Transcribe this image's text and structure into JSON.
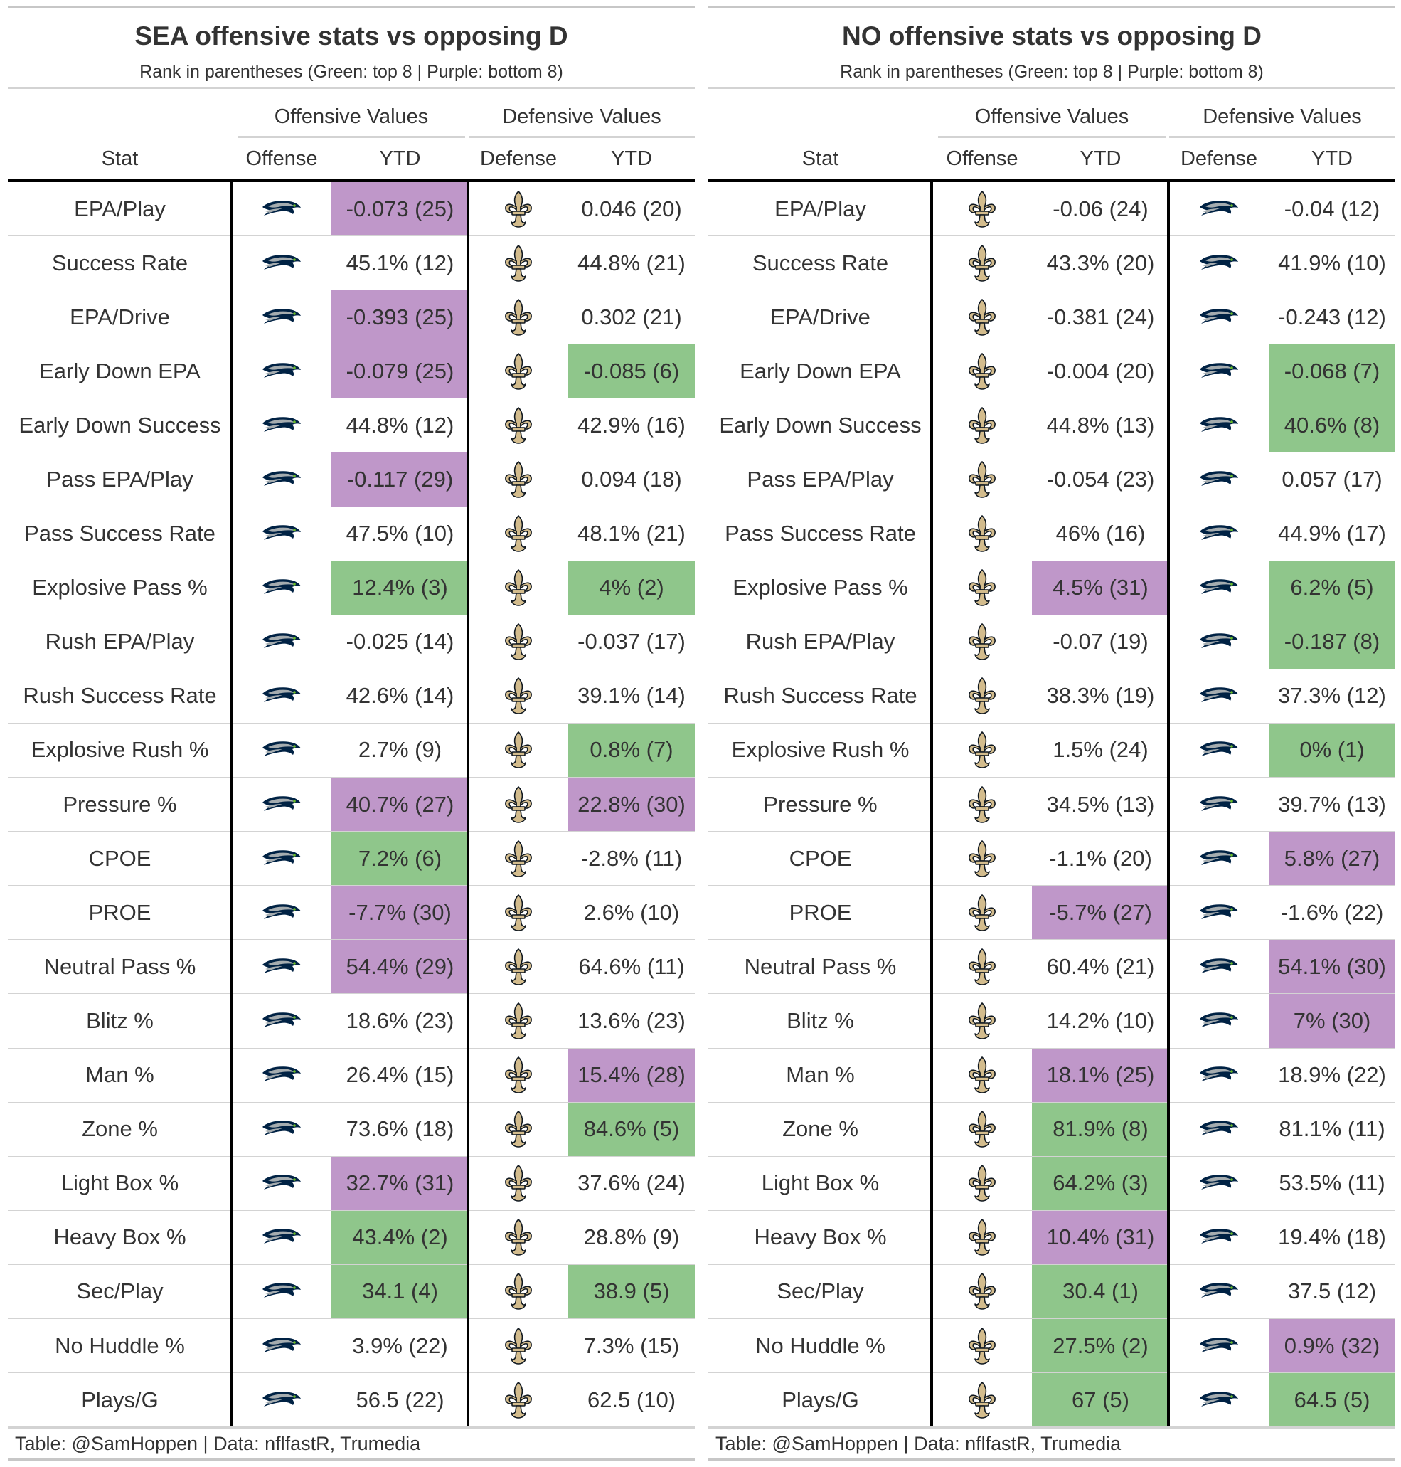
{
  "colors": {
    "top8": "#8fc68b",
    "bottom8": "#bf97c9",
    "seahawks_navy": "#002244",
    "seahawks_gray": "#a5acaf",
    "seahawks_green": "#69be28",
    "saints_gold": "#d3bc8d",
    "saints_black": "#101820"
  },
  "icons": {
    "SEA": "seahawks-logo-icon",
    "NO": "saints-fleur-de-lis-icon"
  },
  "tables": [
    {
      "title": "SEA offensive stats vs opposing D",
      "subtitle": "Rank in parentheses (Green: top 8 | Purple: bottom 8)",
      "spanners": {
        "offensive": "Offensive Values",
        "defensive": "Defensive Values"
      },
      "columns": {
        "stat": "Stat",
        "offense": "Offense",
        "ytd_off": "YTD",
        "defense": "Defense",
        "ytd_def": "YTD"
      },
      "offense_team": "SEA",
      "defense_team": "NO",
      "footer": "Table: @SamHoppen | Data: nflfastR, Trumedia",
      "rows": [
        {
          "stat": "EPA/Play",
          "off": "-0.073 (25)",
          "off_rank": 25,
          "def": "0.046 (20)",
          "def_rank": 20
        },
        {
          "stat": "Success Rate",
          "off": "45.1% (12)",
          "off_rank": 12,
          "def": "44.8% (21)",
          "def_rank": 21
        },
        {
          "stat": "EPA/Drive",
          "off": "-0.393 (25)",
          "off_rank": 25,
          "def": "0.302 (21)",
          "def_rank": 21
        },
        {
          "stat": "Early Down EPA",
          "off": "-0.079 (25)",
          "off_rank": 25,
          "def": "-0.085 (6)",
          "def_rank": 6
        },
        {
          "stat": "Early Down Success",
          "off": "44.8% (12)",
          "off_rank": 12,
          "def": "42.9% (16)",
          "def_rank": 16
        },
        {
          "stat": "Pass EPA/Play",
          "off": "-0.117 (29)",
          "off_rank": 29,
          "def": "0.094 (18)",
          "def_rank": 18
        },
        {
          "stat": "Pass Success Rate",
          "off": "47.5% (10)",
          "off_rank": 10,
          "def": "48.1% (21)",
          "def_rank": 21
        },
        {
          "stat": "Explosive Pass %",
          "off": "12.4% (3)",
          "off_rank": 3,
          "def": "4% (2)",
          "def_rank": 2
        },
        {
          "stat": "Rush EPA/Play",
          "off": "-0.025 (14)",
          "off_rank": 14,
          "def": "-0.037 (17)",
          "def_rank": 17
        },
        {
          "stat": "Rush Success Rate",
          "off": "42.6% (14)",
          "off_rank": 14,
          "def": "39.1% (14)",
          "def_rank": 14
        },
        {
          "stat": "Explosive Rush %",
          "off": "2.7% (9)",
          "off_rank": 9,
          "def": "0.8% (7)",
          "def_rank": 7
        },
        {
          "stat": "Pressure %",
          "off": "40.7% (27)",
          "off_rank": 27,
          "def": "22.8% (30)",
          "def_rank": 30
        },
        {
          "stat": "CPOE",
          "off": "7.2% (6)",
          "off_rank": 6,
          "def": "-2.8% (11)",
          "def_rank": 11
        },
        {
          "stat": "PROE",
          "off": "-7.7% (30)",
          "off_rank": 30,
          "def": "2.6% (10)",
          "def_rank": 10
        },
        {
          "stat": "Neutral Pass %",
          "off": "54.4% (29)",
          "off_rank": 29,
          "def": "64.6% (11)",
          "def_rank": 11
        },
        {
          "stat": "Blitz %",
          "off": "18.6% (23)",
          "off_rank": 23,
          "def": "13.6% (23)",
          "def_rank": 23
        },
        {
          "stat": "Man %",
          "off": "26.4% (15)",
          "off_rank": 15,
          "def": "15.4% (28)",
          "def_rank": 28
        },
        {
          "stat": "Zone %",
          "off": "73.6% (18)",
          "off_rank": 18,
          "def": "84.6% (5)",
          "def_rank": 5
        },
        {
          "stat": "Light Box %",
          "off": "32.7% (31)",
          "off_rank": 31,
          "def": "37.6% (24)",
          "def_rank": 24
        },
        {
          "stat": "Heavy Box %",
          "off": "43.4% (2)",
          "off_rank": 2,
          "def": "28.8% (9)",
          "def_rank": 9
        },
        {
          "stat": "Sec/Play",
          "off": "34.1 (4)",
          "off_rank": 4,
          "def": "38.9 (5)",
          "def_rank": 5
        },
        {
          "stat": "No Huddle %",
          "off": "3.9% (22)",
          "off_rank": 22,
          "def": "7.3% (15)",
          "def_rank": 15
        },
        {
          "stat": "Plays/G",
          "off": "56.5 (22)",
          "off_rank": 22,
          "def": "62.5 (10)",
          "def_rank": 10
        }
      ]
    },
    {
      "title": "NO offensive stats vs opposing D",
      "subtitle": "Rank in parentheses (Green: top 8 | Purple: bottom 8)",
      "spanners": {
        "offensive": "Offensive Values",
        "defensive": "Defensive Values"
      },
      "columns": {
        "stat": "Stat",
        "offense": "Offense",
        "ytd_off": "YTD",
        "defense": "Defense",
        "ytd_def": "YTD"
      },
      "offense_team": "NO",
      "defense_team": "SEA",
      "footer": "Table: @SamHoppen | Data: nflfastR, Trumedia",
      "rows": [
        {
          "stat": "EPA/Play",
          "off": "-0.06 (24)",
          "off_rank": 24,
          "def": "-0.04 (12)",
          "def_rank": 12
        },
        {
          "stat": "Success Rate",
          "off": "43.3% (20)",
          "off_rank": 20,
          "def": "41.9% (10)",
          "def_rank": 10
        },
        {
          "stat": "EPA/Drive",
          "off": "-0.381 (24)",
          "off_rank": 24,
          "def": "-0.243 (12)",
          "def_rank": 12
        },
        {
          "stat": "Early Down EPA",
          "off": "-0.004 (20)",
          "off_rank": 20,
          "def": "-0.068 (7)",
          "def_rank": 7
        },
        {
          "stat": "Early Down Success",
          "off": "44.8% (13)",
          "off_rank": 13,
          "def": "40.6% (8)",
          "def_rank": 8
        },
        {
          "stat": "Pass EPA/Play",
          "off": "-0.054 (23)",
          "off_rank": 23,
          "def": "0.057 (17)",
          "def_rank": 17
        },
        {
          "stat": "Pass Success Rate",
          "off": "46% (16)",
          "off_rank": 16,
          "def": "44.9% (17)",
          "def_rank": 17
        },
        {
          "stat": "Explosive Pass %",
          "off": "4.5% (31)",
          "off_rank": 31,
          "def": "6.2% (5)",
          "def_rank": 5
        },
        {
          "stat": "Rush EPA/Play",
          "off": "-0.07 (19)",
          "off_rank": 19,
          "def": "-0.187 (8)",
          "def_rank": 8
        },
        {
          "stat": "Rush Success Rate",
          "off": "38.3% (19)",
          "off_rank": 19,
          "def": "37.3% (12)",
          "def_rank": 12
        },
        {
          "stat": "Explosive Rush %",
          "off": "1.5% (24)",
          "off_rank": 24,
          "def": "0% (1)",
          "def_rank": 1
        },
        {
          "stat": "Pressure %",
          "off": "34.5% (13)",
          "off_rank": 13,
          "def": "39.7% (13)",
          "def_rank": 13
        },
        {
          "stat": "CPOE",
          "off": "-1.1% (20)",
          "off_rank": 20,
          "def": "5.8% (27)",
          "def_rank": 27
        },
        {
          "stat": "PROE",
          "off": "-5.7% (27)",
          "off_rank": 27,
          "def": "-1.6% (22)",
          "def_rank": 22
        },
        {
          "stat": "Neutral Pass %",
          "off": "60.4% (21)",
          "off_rank": 21,
          "def": "54.1% (30)",
          "def_rank": 30
        },
        {
          "stat": "Blitz %",
          "off": "14.2% (10)",
          "off_rank": 10,
          "def": "7% (30)",
          "def_rank": 30
        },
        {
          "stat": "Man %",
          "off": "18.1% (25)",
          "off_rank": 25,
          "def": "18.9% (22)",
          "def_rank": 22
        },
        {
          "stat": "Zone %",
          "off": "81.9% (8)",
          "off_rank": 8,
          "def": "81.1% (11)",
          "def_rank": 11
        },
        {
          "stat": "Light Box %",
          "off": "64.2% (3)",
          "off_rank": 3,
          "def": "53.5% (11)",
          "def_rank": 11
        },
        {
          "stat": "Heavy Box %",
          "off": "10.4% (31)",
          "off_rank": 31,
          "def": "19.4% (18)",
          "def_rank": 18
        },
        {
          "stat": "Sec/Play",
          "off": "30.4 (1)",
          "off_rank": 1,
          "def": "37.5 (12)",
          "def_rank": 12
        },
        {
          "stat": "No Huddle %",
          "off": "27.5% (2)",
          "off_rank": 2,
          "def": "0.9% (32)",
          "def_rank": 32
        },
        {
          "stat": "Plays/G",
          "off": "67 (5)",
          "off_rank": 5,
          "def": "64.5 (5)",
          "def_rank": 5
        }
      ]
    }
  ]
}
